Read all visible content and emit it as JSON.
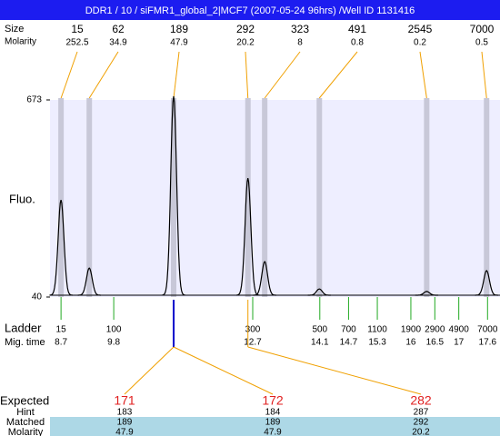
{
  "header": {
    "title": "DDR1 / 10 / siFMR1_global_2|MCF7 (2007-05-24 96hrs) /Well ID 1131416"
  },
  "chart_data": {
    "type": "line",
    "ylabel": "Fluo.",
    "ylim": [
      40,
      673
    ],
    "yticks": [
      40,
      673
    ],
    "xlim": [
      8.47,
      17.86
    ],
    "xticks": [
      8.7,
      9.8,
      12.7,
      14.1,
      14.7,
      15.3,
      16,
      16.5,
      17,
      17.6
    ],
    "peaks": {
      "row_labels": [
        "Size",
        "Molarity"
      ],
      "size": [
        15,
        62,
        189,
        292,
        323,
        491,
        2545,
        7000
      ],
      "molarity": [
        252.5,
        34.9,
        47.9,
        20.2,
        8,
        0.8,
        0.2,
        0.5
      ],
      "x": [
        8.7,
        9.29,
        11.05,
        12.6,
        12.95,
        14.09,
        16.33,
        17.58
      ],
      "values": [
        346,
        127,
        680,
        416,
        148,
        60,
        52,
        119
      ]
    },
    "ladder": {
      "label": "Ladder",
      "time_label": "Mig. time",
      "sizes": [
        15,
        100,
        300,
        500,
        700,
        1100,
        1900,
        2900,
        4900,
        7000
      ]
    },
    "expected": {
      "label": "Expected",
      "row_labels": [
        "Hint",
        "Matched",
        "Molarity"
      ],
      "expected": [
        171,
        172,
        282
      ],
      "hint": [
        183,
        184,
        287
      ],
      "matched": [
        189,
        189,
        292
      ],
      "molarity": [
        47.9,
        47.9,
        20.2
      ]
    }
  }
}
